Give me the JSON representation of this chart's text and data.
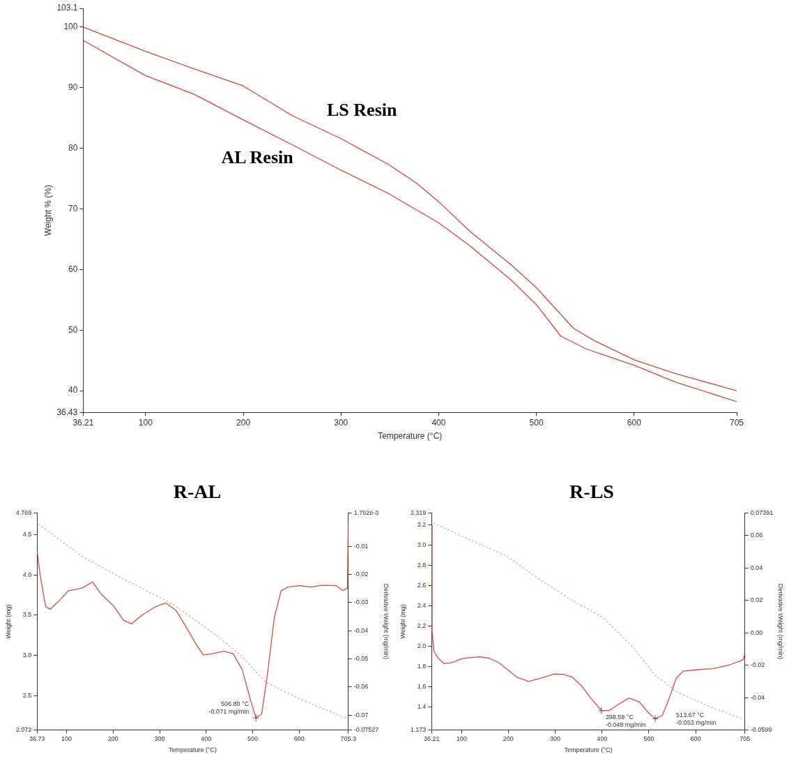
{
  "chart_data": [
    {
      "type": "line",
      "xlabel": "Temperature (°C)",
      "ylabel": "Weight % (%)",
      "xlim": [
        36.21,
        705
      ],
      "xticks": [
        36.21,
        100,
        200,
        300,
        400,
        500,
        600,
        705
      ],
      "ylim": [
        36.43,
        103.1
      ],
      "yticks": [
        36.43,
        40,
        50,
        60,
        70,
        80,
        90,
        100,
        103.1
      ],
      "grid": false,
      "legend": false,
      "marker": "none",
      "line_style": "solid",
      "series": [
        {
          "name": "LS Resin",
          "color": "#e0403f",
          "x": [
            36.21,
            100,
            150,
            200,
            250,
            300,
            348,
            377,
            400,
            432,
            474,
            500,
            538,
            559,
            600,
            643,
            705
          ],
          "values": [
            100.0,
            96.0,
            93.1,
            90.3,
            85.4,
            81.6,
            77.4,
            74.3,
            71.2,
            66.3,
            60.8,
            57.0,
            50.3,
            48.3,
            45.1,
            42.8,
            40.0
          ]
        },
        {
          "name": "AL Resin",
          "color": "#e0403f",
          "x": [
            36.21,
            100,
            150,
            200,
            250,
            300,
            348,
            400,
            432,
            474,
            500,
            525,
            551,
            600,
            643,
            705
          ],
          "values": [
            97.8,
            92.0,
            88.9,
            84.7,
            80.6,
            76.4,
            72.6,
            67.7,
            63.9,
            58.3,
            54.2,
            49.0,
            46.9,
            44.2,
            41.4,
            38.2
          ]
        }
      ]
    },
    {
      "type": "line",
      "title": "R-AL",
      "xlabel": "Temperature (°C)",
      "ylabel": "Weight (mg)",
      "y2label": "Derivative Weight (mg/min)",
      "xlim": [
        36.73,
        705.3
      ],
      "xticks": [
        36.73,
        100,
        200,
        300,
        400,
        500,
        600,
        705.3
      ],
      "ylim": [
        2.072,
        4.769
      ],
      "yticks": [
        2.072,
        2.5,
        {
          "value": 3,
          "label": "3.0"
        },
        3.5,
        {
          "value": 4,
          "label": "4.0"
        },
        4.5,
        4.769
      ],
      "y2lim": [
        -0.07527,
        0.001762
      ],
      "y2ticks": [
        -0.07527,
        -0.07,
        -0.06,
        -0.05,
        -0.04,
        -0.03,
        -0.02,
        -0.01,
        {
          "value": 0.001762,
          "label": "1.762e-3"
        }
      ],
      "grid": false,
      "legend": false,
      "marker": "none",
      "annotations": [
        "506.80 °C\n-0.071 mg/min"
      ],
      "series": [
        {
          "color": "#e8454a",
          "axis": "y2",
          "line_style": "solid",
          "x": [
            36.73,
            42.6,
            54.9,
            64.7,
            84.4,
            104.1,
            118.8,
            133.5,
            155.6,
            172.8,
            202.3,
            222,
            239.2,
            261.3,
            290.8,
            312.9,
            335,
            354.7,
            379.2,
            394,
            413.6,
            438.2,
            457.9,
            477.5,
            494.7,
            506.8,
            519.3,
            531.6,
            546.3,
            561,
            575.8,
            600.4,
            625,
            649.5,
            679,
            693.7,
            703.5,
            705.3
          ],
          "values": [
            -0.0118,
            -0.0196,
            -0.0315,
            -0.0324,
            -0.0293,
            -0.0258,
            -0.0254,
            -0.0249,
            -0.0227,
            -0.0267,
            -0.0315,
            -0.0363,
            -0.0376,
            -0.0346,
            -0.0315,
            -0.0302,
            -0.0328,
            -0.0381,
            -0.0451,
            -0.0486,
            -0.0482,
            -0.0473,
            -0.0482,
            -0.0539,
            -0.0644,
            -0.071,
            -0.0696,
            -0.0556,
            -0.0354,
            -0.0258,
            -0.0245,
            -0.024,
            -0.0245,
            -0.0239,
            -0.024,
            -0.0258,
            -0.0249,
            -0.0017
          ]
        },
        {
          "color": "#f29a9a",
          "line_style": "dotted",
          "x": [
            40.2,
            133.5,
            231.8,
            330.1,
            428.4,
            477.5,
            526.9,
            600.4,
            703.5
          ],
          "values": [
            4.63,
            4.23,
            3.92,
            3.63,
            3.22,
            2.98,
            2.67,
            2.46,
            2.21
          ]
        }
      ]
    },
    {
      "type": "line",
      "title": "R-LS",
      "xlabel": "Temperature (°C)",
      "ylabel": "Weight (mg)",
      "y2label": "Derivative Weight (mg/min)",
      "xlim": [
        36.21,
        705
      ],
      "xticks": [
        36.21,
        100,
        200,
        300,
        400,
        500,
        600,
        705
      ],
      "ylim": [
        1.173,
        3.319
      ],
      "yticks": [
        1.173,
        1.4,
        1.6,
        1.8,
        {
          "value": 2,
          "label": "2.0"
        },
        2.2,
        2.4,
        2.6,
        2.8,
        {
          "value": 3,
          "label": "3.0"
        },
        3.2,
        3.319
      ],
      "y2lim": [
        -0.0599,
        0.07391
      ],
      "y2ticks": [
        -0.0599,
        -0.04,
        -0.02,
        {
          "value": 0,
          "label": "0.00"
        },
        0.02,
        0.04,
        0.06,
        0.07391
      ],
      "grid": false,
      "legend": false,
      "marker": "none",
      "annotations": [
        "398.59 °C\n-0.048 mg/min",
        "513.67 °C\n-0.053 mg/min"
      ],
      "series": [
        {
          "color": "#e8454a",
          "axis": "y2",
          "line_style": "solid",
          "x": [
            36.21,
            37.2,
            41.1,
            51,
            63.3,
            80.5,
            100.3,
            120,
            139.7,
            159.4,
            179.1,
            198.8,
            218.5,
            243.1,
            267.7,
            297.3,
            317,
            336.7,
            356.4,
            376.1,
            398.59,
            415.5,
            435.2,
            457.4,
            479.6,
            499.3,
            513.67,
            528.8,
            543.6,
            558.4,
            573.2,
            602.7,
            637.2,
            671.7,
            701.2,
            705
          ],
          "values": [
            0.0662,
            0.0008,
            -0.0114,
            -0.016,
            -0.019,
            -0.0183,
            -0.016,
            -0.0152,
            -0.0148,
            -0.0157,
            -0.0183,
            -0.0228,
            -0.0274,
            -0.03,
            -0.0281,
            -0.0254,
            -0.0256,
            -0.0274,
            -0.0327,
            -0.0403,
            -0.048,
            -0.0479,
            -0.0441,
            -0.0403,
            -0.0426,
            -0.0494,
            -0.053,
            -0.051,
            -0.0403,
            -0.0281,
            -0.0236,
            -0.0228,
            -0.0221,
            -0.0198,
            -0.0167,
            -0.0129
          ]
        },
        {
          "color": "#f29a9a",
          "line_style": "dotted",
          "x": [
            41.1,
            120,
            193.8,
            267.7,
            341.6,
            400.7,
            464.8,
            514,
            563.3,
            637.2,
            701.2
          ],
          "values": [
            3.22,
            3.05,
            2.9,
            2.66,
            2.44,
            2.29,
            2.0,
            1.71,
            1.54,
            1.39,
            1.28
          ]
        }
      ]
    }
  ]
}
